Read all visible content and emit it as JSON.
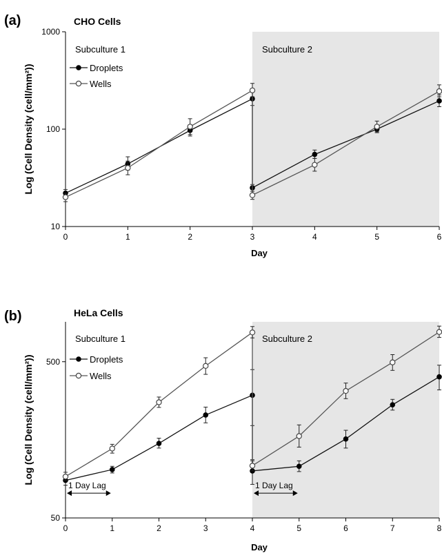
{
  "chart_data": [
    {
      "type": "line",
      "panel_label": "(a)",
      "title": "CHO Cells",
      "xlabel": "Day",
      "ylabel": "Log (Cell Density (cell/mm²))",
      "yscale": "log",
      "ylim": [
        10,
        1000
      ],
      "xlim": [
        0,
        6
      ],
      "x_ticks": [
        "0",
        "1",
        "2",
        "3",
        "4",
        "5",
        "6"
      ],
      "y_ticks": [
        {
          "value": 10,
          "label": "10"
        },
        {
          "value": 100,
          "label": "100"
        },
        {
          "value": 1000,
          "label": "1000"
        }
      ],
      "regions": [
        {
          "label": "Subculture 1",
          "x_range": [
            0,
            3
          ],
          "shaded": false
        },
        {
          "label": "Subculture 2",
          "x_range": [
            3,
            6
          ],
          "shaded": true,
          "color": "#e6e6e6"
        }
      ],
      "legend": {
        "position": "top-left"
      },
      "series": [
        {
          "name": "Droplets",
          "marker": "filled-circle",
          "segments": [
            [
              {
                "x": 0,
                "y": 22,
                "err": [
                  2,
                  2
                ]
              },
              {
                "x": 1,
                "y": 44,
                "err": [
                  6,
                  8
                ]
              },
              {
                "x": 2,
                "y": 97,
                "err": [
                  12,
                  14
                ]
              },
              {
                "x": 3,
                "y": 205,
                "err": [
                  30,
                  35
                ]
              }
            ],
            [
              {
                "x": 3,
                "y": 25,
                "err": [
                  2,
                  2
                ]
              },
              {
                "x": 4,
                "y": 55,
                "err": [
                  5,
                  6
                ]
              },
              {
                "x": 5,
                "y": 100,
                "err": [
                  8,
                  10
                ]
              },
              {
                "x": 6,
                "y": 195,
                "err": [
                  25,
                  30
                ]
              }
            ]
          ]
        },
        {
          "name": "Wells",
          "marker": "open-circle",
          "segments": [
            [
              {
                "x": 0,
                "y": 20,
                "err": [
                  2,
                  2
                ]
              },
              {
                "x": 1,
                "y": 40,
                "err": [
                  6,
                  7
                ]
              },
              {
                "x": 2,
                "y": 106,
                "err": [
                  18,
                  22
                ]
              },
              {
                "x": 3,
                "y": 250,
                "err": [
                  35,
                  45
                ]
              }
            ],
            [
              {
                "x": 3,
                "y": 21,
                "err": [
                  2,
                  2
                ]
              },
              {
                "x": 4,
                "y": 43,
                "err": [
                  6,
                  7
                ]
              },
              {
                "x": 5,
                "y": 106,
                "err": [
                  12,
                  15
                ]
              },
              {
                "x": 6,
                "y": 245,
                "err": [
                  30,
                  40
                ]
              }
            ]
          ]
        }
      ]
    },
    {
      "type": "line",
      "panel_label": "(b)",
      "title": "HeLa Cells",
      "xlabel": "Day",
      "ylabel": "Log (Cell Density (cell/mm²))",
      "yscale": "log",
      "ylim": [
        50,
        900
      ],
      "xlim": [
        0,
        8
      ],
      "x_ticks": [
        "0",
        "1",
        "2",
        "3",
        "4",
        "5",
        "6",
        "7",
        "8"
      ],
      "y_ticks": [
        {
          "value": 50,
          "label": "50"
        },
        {
          "value": 500,
          "label": "500"
        }
      ],
      "regions": [
        {
          "label": "Subculture 1",
          "x_range": [
            0,
            4
          ],
          "shaded": false
        },
        {
          "label": "Subculture 2",
          "x_range": [
            4,
            8
          ],
          "shaded": true,
          "color": "#e6e6e6"
        }
      ],
      "annotations": [
        {
          "text": "1 Day Lag",
          "x_range": [
            0,
            1
          ],
          "y": 72
        },
        {
          "text": "1 Day Lag",
          "x_range": [
            4,
            5
          ],
          "y": 72
        }
      ],
      "legend": {
        "position": "top-left"
      },
      "series": [
        {
          "name": "Droplets",
          "marker": "filled-circle",
          "segments": [
            [
              {
                "x": 0,
                "y": 87,
                "err": [
                  6,
                  6
                ]
              },
              {
                "x": 1,
                "y": 102,
                "err": [
                  5,
                  5
                ]
              },
              {
                "x": 2,
                "y": 150,
                "err": [
                  10,
                  12
                ]
              },
              {
                "x": 3,
                "y": 228,
                "err": [
                  25,
                  28
                ]
              },
              {
                "x": 4,
                "y": 305,
                "err": [
                  110,
                  140
                ]
              }
            ],
            [
              {
                "x": 4,
                "y": 100,
                "err": [
                  18,
                  18
                ]
              },
              {
                "x": 5,
                "y": 107,
                "err": [
                  8,
                  9
                ]
              },
              {
                "x": 6,
                "y": 160,
                "err": [
                  20,
                  22
                ]
              },
              {
                "x": 7,
                "y": 265,
                "err": [
                  20,
                  22
                ]
              },
              {
                "x": 8,
                "y": 400,
                "err": [
                  70,
                  75
                ]
              }
            ]
          ]
        },
        {
          "name": "Wells",
          "marker": "open-circle",
          "segments": [
            [
              {
                "x": 0,
                "y": 92,
                "err": [
                  5,
                  6
                ]
              },
              {
                "x": 1,
                "y": 139,
                "err": [
                  9,
                  9
                ]
              },
              {
                "x": 2,
                "y": 275,
                "err": [
                  20,
                  22
                ]
              },
              {
                "x": 3,
                "y": 470,
                "err": [
                  55,
                  60
                ]
              },
              {
                "x": 4,
                "y": 770,
                "err": [
                  60,
                  70
                ]
              }
            ],
            [
              {
                "x": 4,
                "y": 108,
                "err": [
                  8,
                  8
                ]
              },
              {
                "x": 5,
                "y": 167,
                "err": [
                  25,
                  30
                ]
              },
              {
                "x": 6,
                "y": 325,
                "err": [
                  35,
                  40
                ]
              },
              {
                "x": 7,
                "y": 495,
                "err": [
                  55,
                  60
                ]
              },
              {
                "x": 8,
                "y": 775,
                "err": [
                  60,
                  70
                ]
              }
            ]
          ]
        }
      ]
    }
  ]
}
